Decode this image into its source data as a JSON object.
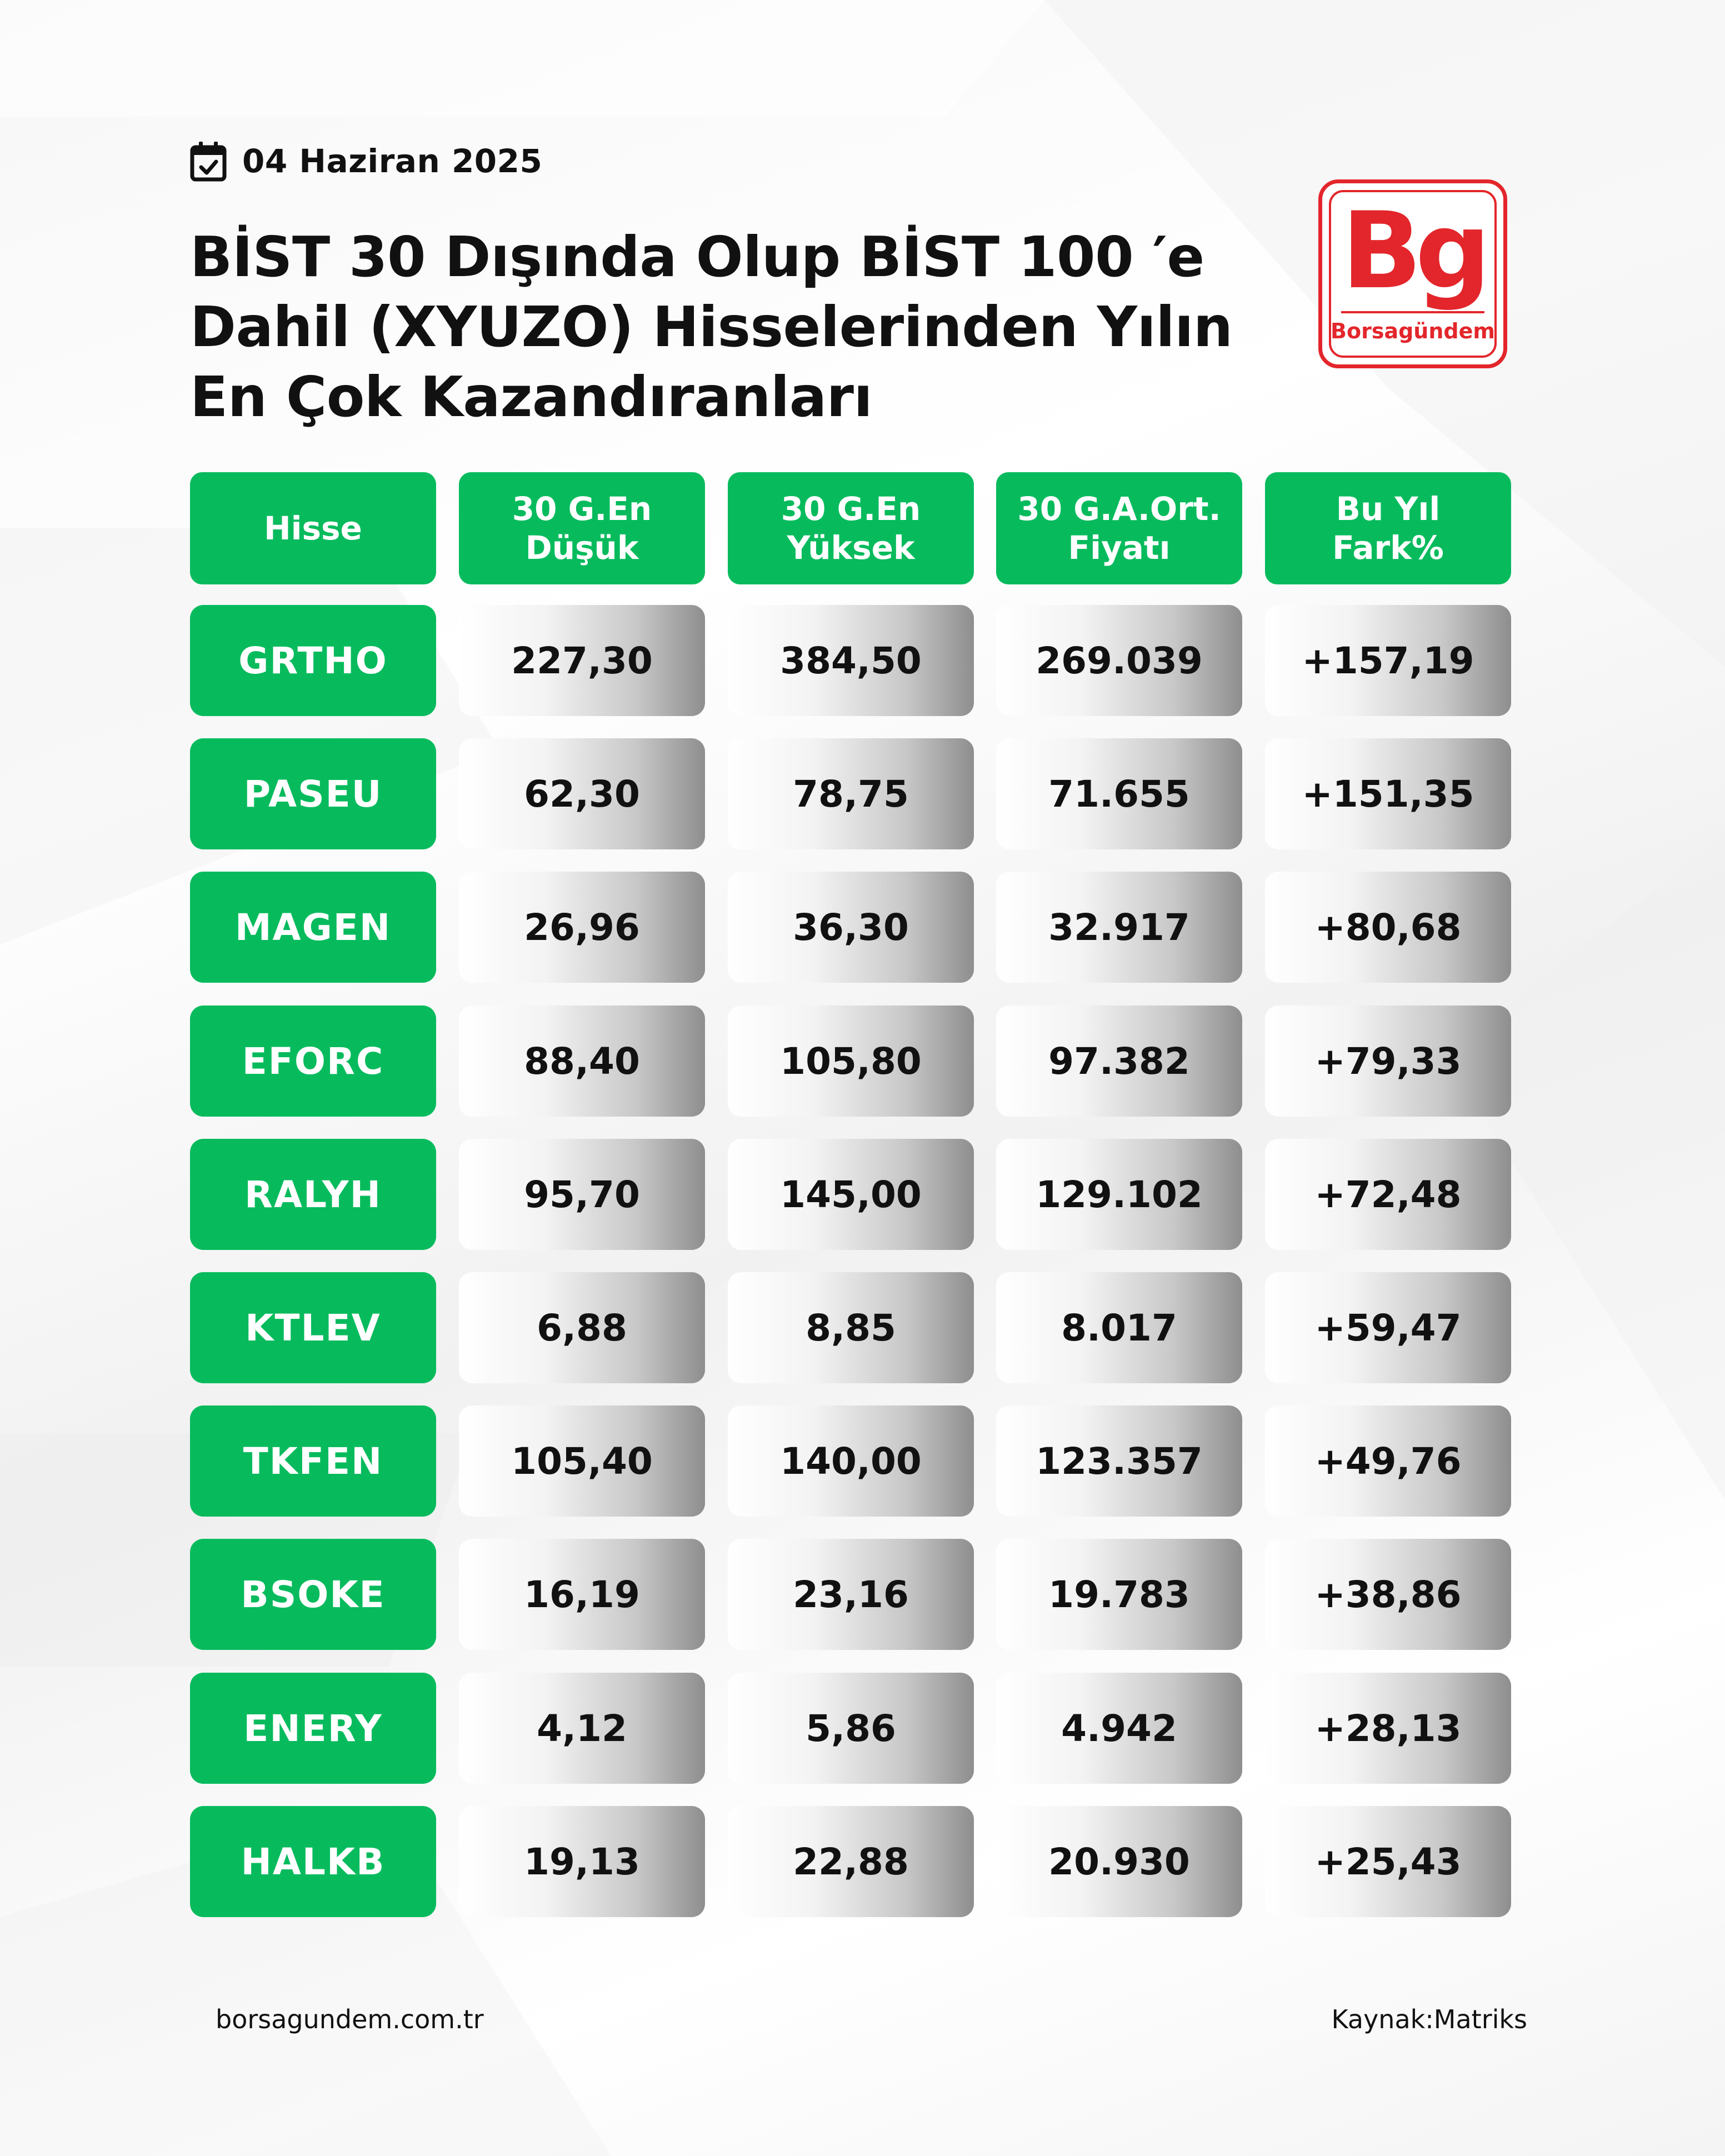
{
  "date": "04 Haziran 2025",
  "title_lines": [
    "BİST 30 Dışında Olup BİST 100 ′e",
    "Dahil (XYUZO) Hisselerinden Yılın",
    "En Çok Kazandıranları"
  ],
  "logo": {
    "mark": "Bg",
    "name": "Borsagündem",
    "color": "#e3262b"
  },
  "table": {
    "headers": [
      [
        "Hisse"
      ],
      [
        "30 G.En",
        "Düşük"
      ],
      [
        "30 G.En",
        "Yüksek"
      ],
      [
        "30 G.A.Ort.",
        "Fiyatı"
      ],
      [
        "Bu Yıl",
        "Fark%"
      ]
    ],
    "rows": [
      {
        "hisse": "GRTHO",
        "dusuk": "227,30",
        "yuksek": "384,50",
        "ort": "269.039",
        "fark": "+157,19"
      },
      {
        "hisse": "PASEU",
        "dusuk": "62,30",
        "yuksek": "78,75",
        "ort": "71.655",
        "fark": "+151,35"
      },
      {
        "hisse": "MAGEN",
        "dusuk": "26,96",
        "yuksek": "36,30",
        "ort": "32.917",
        "fark": "+80,68"
      },
      {
        "hisse": "EFORC",
        "dusuk": "88,40",
        "yuksek": "105,80",
        "ort": "97.382",
        "fark": "+79,33"
      },
      {
        "hisse": "RALYH",
        "dusuk": "95,70",
        "yuksek": "145,00",
        "ort": "129.102",
        "fark": "+72,48"
      },
      {
        "hisse": "KTLEV",
        "dusuk": "6,88",
        "yuksek": "8,85",
        "ort": "8.017",
        "fark": "+59,47"
      },
      {
        "hisse": "TKFEN",
        "dusuk": "105,40",
        "yuksek": "140,00",
        "ort": "123.357",
        "fark": "+49,76"
      },
      {
        "hisse": "BSOKE",
        "dusuk": "16,19",
        "yuksek": "23,16",
        "ort": "19.783",
        "fark": "+38,86"
      },
      {
        "hisse": "ENERY",
        "dusuk": "4,12",
        "yuksek": "5,86",
        "ort": "4.942",
        "fark": "+28,13"
      },
      {
        "hisse": "HALKB",
        "dusuk": "19,13",
        "yuksek": "22,88",
        "ort": "20.930",
        "fark": "+25,43"
      }
    ]
  },
  "footer": {
    "website": "borsagundem.com.tr",
    "source": "Kaynak:Matriks"
  },
  "colors": {
    "accent_green": "#07bb5d",
    "brand_red": "#e3262b"
  }
}
